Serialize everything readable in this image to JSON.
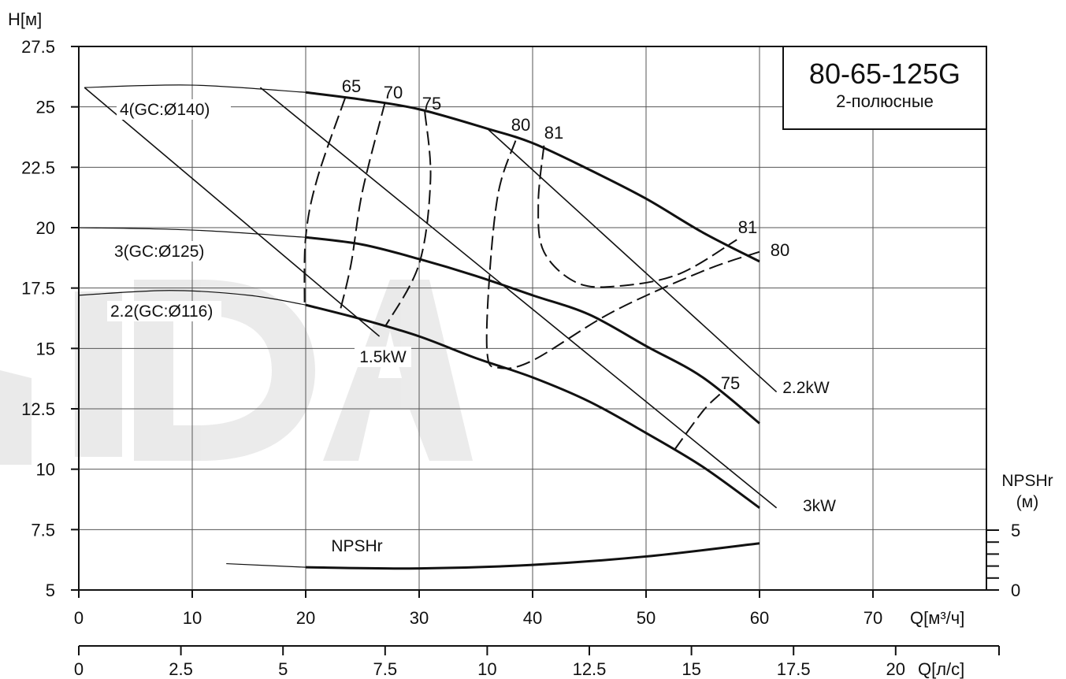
{
  "chart_data": {
    "type": "line",
    "model_title": "80-65-125G",
    "model_subtitle": "2-полюсные",
    "y_axis": {
      "label": "H[м]",
      "range": [
        5,
        27.5
      ],
      "ticks": [
        "5",
        "7.5",
        "10",
        "12.5",
        "15",
        "17.5",
        "20",
        "22.5",
        "25",
        "27.5"
      ]
    },
    "x_axis_primary": {
      "label": "Q[м³/ч]",
      "range": [
        0,
        80
      ],
      "ticks": [
        "0",
        "10",
        "20",
        "30",
        "40",
        "50",
        "60",
        "70"
      ]
    },
    "x_axis_secondary": {
      "label": "Q[л/с]",
      "range": [
        0,
        22.2
      ],
      "ticks": [
        "0",
        "2.5",
        "5",
        "7.5",
        "10",
        "12.5",
        "15",
        "17.5",
        "20"
      ]
    },
    "npsh_axis": {
      "label_line1": "NPSHr",
      "label_line2": "(м)",
      "ticks": [
        "0",
        "5"
      ]
    },
    "grid": true,
    "impeller_curves": [
      {
        "name": "4(GC:Ø140)",
        "thin": [
          [
            0.5,
            25.8
          ],
          [
            10,
            25.9
          ],
          [
            20,
            25.6
          ]
        ],
        "thick": [
          [
            20,
            25.6
          ],
          [
            25,
            25.3
          ],
          [
            30,
            24.9
          ],
          [
            36,
            24.1
          ],
          [
            40,
            23.5
          ],
          [
            45,
            22.4
          ],
          [
            50,
            21.2
          ],
          [
            55,
            19.8
          ],
          [
            60,
            18.6
          ]
        ]
      },
      {
        "name": "3(GC:Ø125)",
        "thin": [
          [
            0,
            20
          ],
          [
            10,
            19.9
          ],
          [
            20,
            19.6
          ]
        ],
        "thick": [
          [
            20,
            19.6
          ],
          [
            25,
            19.3
          ],
          [
            30,
            18.7
          ],
          [
            35,
            18.0
          ],
          [
            40,
            17.2
          ],
          [
            45,
            16.4
          ],
          [
            50,
            15.1
          ],
          [
            55,
            13.8
          ],
          [
            60,
            11.9
          ]
        ]
      },
      {
        "name": "2.2(GC:Ø116)",
        "thin": [
          [
            0,
            17.2
          ],
          [
            8,
            17.4
          ],
          [
            15,
            17.2
          ],
          [
            20,
            16.8
          ]
        ],
        "thick": [
          [
            20,
            16.8
          ],
          [
            25,
            16.2
          ],
          [
            30,
            15.5
          ],
          [
            35,
            14.6
          ],
          [
            40,
            13.8
          ],
          [
            45,
            12.8
          ],
          [
            50,
            11.5
          ],
          [
            55,
            10.1
          ],
          [
            60,
            8.4
          ]
        ]
      }
    ],
    "efficiency_labels": [
      "65",
      "70",
      "75",
      "80",
      "81",
      "81",
      "80",
      "75"
    ],
    "efficiency_curves": [
      {
        "label": "65",
        "points": [
          [
            23.5,
            25.4
          ],
          [
            21,
            22
          ],
          [
            20,
            19.6
          ],
          [
            19.9,
            16.8
          ]
        ]
      },
      {
        "label": "70",
        "points": [
          [
            27,
            25.2
          ],
          [
            25,
            21.5
          ],
          [
            24,
            18.5
          ],
          [
            23,
            16.5
          ]
        ]
      },
      {
        "label": "75",
        "points": [
          [
            30.5,
            24.8
          ],
          [
            31,
            22
          ],
          [
            30,
            18.5
          ],
          [
            27,
            15.9
          ]
        ]
      },
      {
        "label": "80",
        "points": [
          [
            38.5,
            23.6
          ],
          [
            37,
            21.5
          ],
          [
            36.2,
            18
          ],
          [
            36,
            14.8
          ],
          [
            37,
            14.2
          ],
          [
            40,
            14.5
          ],
          [
            47,
            16.5
          ],
          [
            55,
            18.2
          ],
          [
            60,
            19.0
          ]
        ]
      },
      {
        "label": "81",
        "points": [
          [
            41,
            23.4
          ],
          [
            40.5,
            21
          ],
          [
            41,
            19
          ],
          [
            44,
            17.7
          ],
          [
            48,
            17.6
          ],
          [
            53,
            18.1
          ],
          [
            58,
            19.5
          ]
        ]
      },
      {
        "label": "75",
        "points": [
          [
            52.5,
            10.8
          ],
          [
            55,
            12.4
          ],
          [
            56.5,
            13.1
          ]
        ]
      }
    ],
    "power_lines": [
      {
        "label": "1.5kW",
        "points": [
          [
            0.5,
            25.8
          ],
          [
            26.5,
            15.5
          ]
        ]
      },
      {
        "label": "2.2kW",
        "points": [
          [
            16,
            25.8
          ],
          [
            61.5,
            8.4
          ]
        ]
      },
      {
        "label": "3kW",
        "points": [
          [
            36,
            24.1
          ],
          [
            61.5,
            13.2
          ]
        ]
      }
    ],
    "npsh_curve": {
      "name": "NPSHr",
      "thin": [
        [
          13,
          2.2
        ],
        [
          20,
          1.9
        ]
      ],
      "thick": [
        [
          20,
          1.9
        ],
        [
          30,
          1.8
        ],
        [
          40,
          2.1
        ],
        [
          50,
          2.8
        ],
        [
          60,
          3.9
        ]
      ]
    }
  }
}
